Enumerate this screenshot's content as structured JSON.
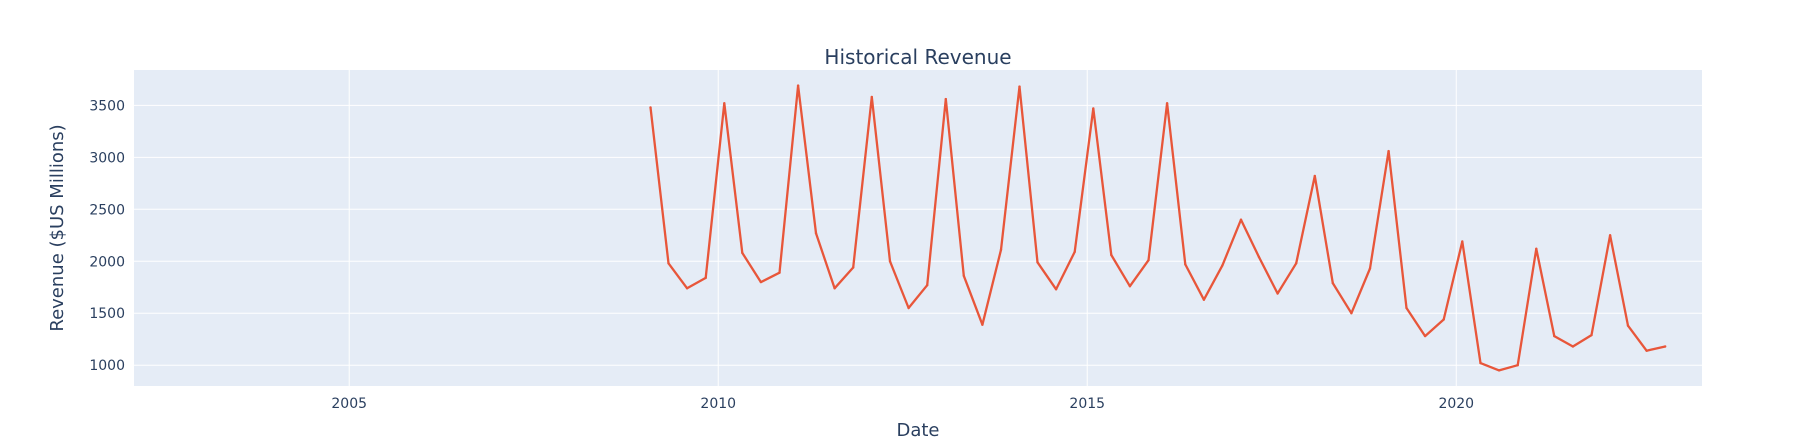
{
  "chart_data": {
    "type": "line",
    "title": "Historical Revenue",
    "xlabel": "Date",
    "ylabel": "Revenue ($US Millions)",
    "xlim": [
      "2002-02-01",
      "2023-05-01"
    ],
    "ylim": [
      800,
      3840
    ],
    "x_ticks": [
      "2005",
      "2010",
      "2015",
      "2020"
    ],
    "x_tick_dates": [
      "2005-01-01",
      "2010-01-01",
      "2015-01-01",
      "2020-01-01"
    ],
    "y_ticks": [
      1000,
      1500,
      2000,
      2500,
      3000,
      3500
    ],
    "grid": true,
    "legend": "none",
    "colors": {
      "plot_bg": "#e5ecf6",
      "grid": "#ffffff",
      "line": "#e8563a",
      "text": "#2a3f5f"
    },
    "series": [
      {
        "x": [
          "2009-01-31",
          "2009-04-30",
          "2009-07-31",
          "2009-10-31",
          "2010-01-31",
          "2010-04-30",
          "2010-07-31",
          "2010-10-31",
          "2011-01-31",
          "2011-04-30",
          "2011-07-31",
          "2011-10-31",
          "2012-01-31",
          "2012-04-30",
          "2012-07-31",
          "2012-10-31",
          "2013-01-31",
          "2013-04-30",
          "2013-07-31",
          "2013-10-31",
          "2014-01-31",
          "2014-04-30",
          "2014-07-31",
          "2014-10-31",
          "2015-01-31",
          "2015-04-30",
          "2015-07-31",
          "2015-10-31",
          "2016-01-31",
          "2016-04-30",
          "2016-07-31",
          "2016-10-31",
          "2017-01-31",
          "2017-04-30",
          "2017-07-31",
          "2017-10-31",
          "2018-01-31",
          "2018-04-30",
          "2018-07-31",
          "2018-10-31",
          "2019-01-31",
          "2019-04-30",
          "2019-07-31",
          "2019-10-31",
          "2020-01-31",
          "2020-04-30",
          "2020-07-31",
          "2020-10-31",
          "2021-01-31",
          "2021-04-30",
          "2021-07-31",
          "2021-10-31",
          "2022-01-31",
          "2022-04-30",
          "2022-07-31",
          "2022-10-31"
        ],
        "values": [
          3480,
          1980,
          1740,
          1840,
          3520,
          2080,
          1800,
          1890,
          3690,
          2270,
          1740,
          1940,
          3580,
          2000,
          1550,
          1770,
          3560,
          1860,
          1390,
          2110,
          3680,
          1990,
          1730,
          2090,
          3470,
          2060,
          1760,
          2010,
          3520,
          1970,
          1630,
          1960,
          2400,
          2040,
          1690,
          1980,
          2820,
          1790,
          1500,
          1930,
          3060,
          1550,
          1280,
          1440,
          2190,
          1020,
          950,
          1000,
          2120,
          1280,
          1180,
          1290,
          2250,
          1380,
          1140,
          1180
        ]
      }
    ]
  }
}
